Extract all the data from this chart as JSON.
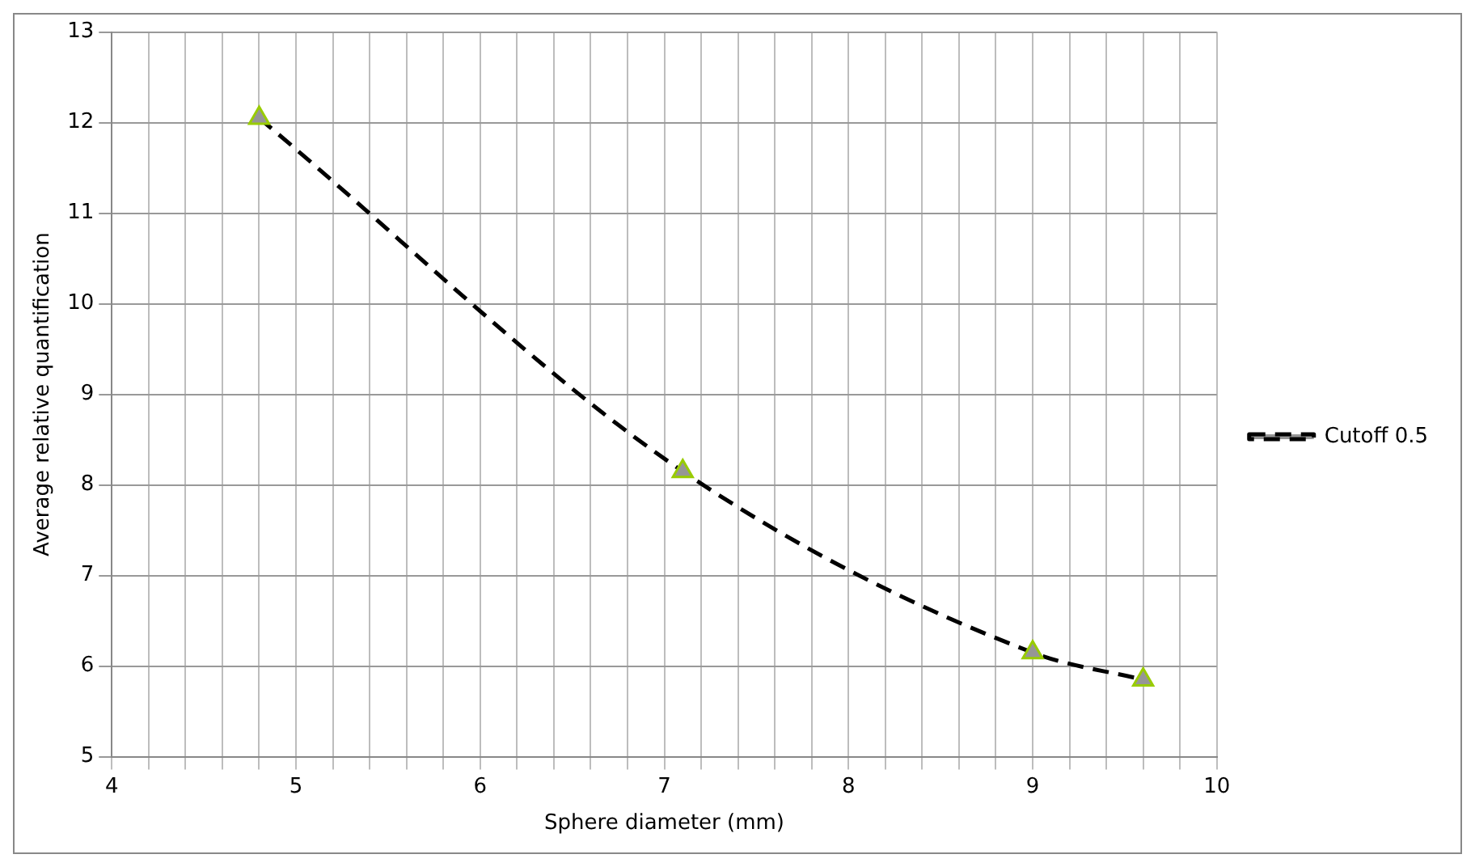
{
  "chart_data": {
    "type": "line",
    "xlabel": "Sphere diameter (mm)",
    "ylabel": "Average relative quantification",
    "x": [
      4.8,
      7.1,
      9.0,
      9.6
    ],
    "series": [
      {
        "name": "Cutoff 0.5",
        "color": "#000000",
        "values": [
          12.05,
          8.15,
          6.15,
          5.85
        ]
      }
    ],
    "xlim": [
      4,
      10
    ],
    "xticks": [
      4,
      {
        "value": 4.2,
        "label": null
      },
      {
        "value": 4.4,
        "label": null
      },
      {
        "value": 4.6,
        "label": null
      },
      {
        "value": 4.8,
        "label": null
      },
      5,
      {
        "value": 5.2,
        "label": null
      },
      {
        "value": 5.4,
        "label": null
      },
      {
        "value": 5.6,
        "label": null
      },
      {
        "value": 5.8,
        "label": null
      },
      6,
      {
        "value": 6.2,
        "label": null
      },
      {
        "value": 6.4,
        "label": null
      },
      {
        "value": 6.6,
        "label": null
      },
      {
        "value": 6.8,
        "label": null
      },
      7,
      {
        "value": 7.2,
        "label": null
      },
      {
        "value": 7.4,
        "label": null
      },
      {
        "value": 7.6,
        "label": null
      },
      {
        "value": 7.8,
        "label": null
      },
      8,
      {
        "value": 8.2,
        "label": null
      },
      {
        "value": 8.4,
        "label": null
      },
      {
        "value": 8.6,
        "label": null
      },
      {
        "value": 8.8,
        "label": null
      },
      9,
      {
        "value": 9.2,
        "label": null
      },
      {
        "value": 9.4,
        "label": null
      },
      {
        "value": 9.6,
        "label": null
      },
      {
        "value": 9.8,
        "label": null
      },
      10
    ],
    "ylim": [
      5,
      13
    ],
    "yticks": [
      5,
      6,
      7,
      8,
      9,
      10,
      11,
      12,
      13
    ],
    "grid": true,
    "legend": "right",
    "marker": "triangle",
    "line_style": "dashed"
  }
}
